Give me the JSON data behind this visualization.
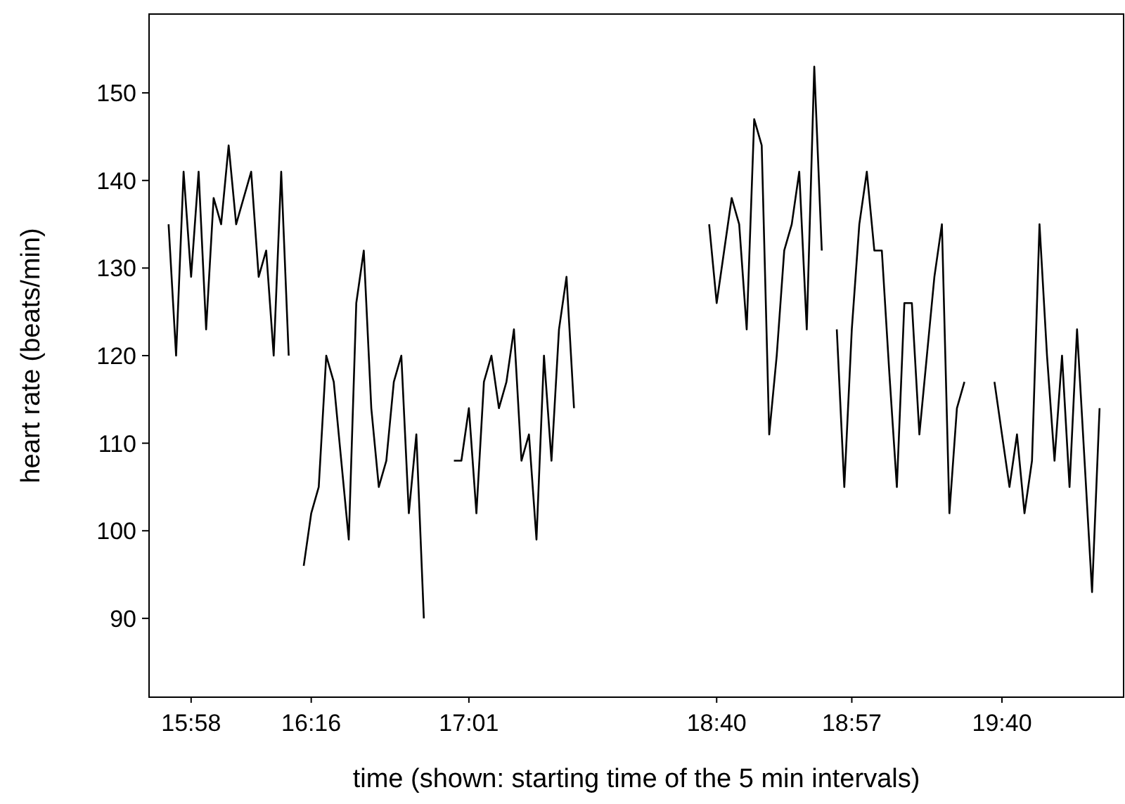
{
  "chart_data": {
    "type": "line",
    "xlabel": "time (shown: starting time of the 5 min intervals)",
    "ylabel": "heart rate (beats/min)",
    "categories": [
      null,
      null,
      null,
      "15:58",
      null,
      null,
      null,
      null,
      null,
      null,
      null,
      null,
      null,
      null,
      null,
      null,
      null,
      null,
      null,
      "16:16",
      null,
      null,
      null,
      null,
      null,
      null,
      null,
      null,
      null,
      null,
      null,
      null,
      null,
      null,
      null,
      null,
      null,
      null,
      null,
      null,
      "17:01",
      null,
      null,
      null,
      null,
      null,
      null,
      null,
      null,
      null,
      null,
      null,
      null,
      null,
      null,
      null,
      null,
      null,
      null,
      null,
      null,
      null,
      null,
      null,
      null,
      null,
      null,
      null,
      null,
      null,
      null,
      null,
      null,
      "18:40",
      null,
      null,
      null,
      null,
      null,
      null,
      null,
      null,
      null,
      null,
      null,
      null,
      null,
      null,
      null,
      null,
      null,
      "18:57",
      null,
      null,
      null,
      null,
      null,
      null,
      null,
      null,
      null,
      null,
      null,
      null,
      null,
      null,
      null,
      null,
      null,
      null,
      null,
      "19:40",
      null,
      null,
      null,
      null,
      null,
      null,
      null,
      null,
      null,
      null,
      null,
      null,
      null
    ],
    "series": [
      {
        "color": "#000000",
        "values": [
          135,
          120,
          141,
          129,
          141,
          123,
          138,
          135,
          144,
          135,
          138,
          141,
          129,
          132,
          120,
          141,
          120,
          null,
          96,
          102,
          105,
          120,
          117,
          108,
          99,
          126,
          132,
          114,
          105,
          108,
          117,
          120,
          102,
          111,
          90,
          null,
          null,
          null,
          108,
          108,
          114,
          102,
          117,
          120,
          114,
          117,
          123,
          108,
          111,
          99,
          120,
          108,
          123,
          129,
          114,
          null,
          null,
          null,
          null,
          null,
          null,
          null,
          null,
          null,
          null,
          null,
          null,
          null,
          null,
          null,
          null,
          null,
          135,
          126,
          132,
          138,
          135,
          123,
          147,
          144,
          111,
          120,
          132,
          135,
          141,
          123,
          153,
          132,
          null,
          123,
          105,
          123,
          135,
          141,
          132,
          132,
          118,
          105,
          126,
          126,
          111,
          120,
          129,
          135,
          102,
          114,
          117,
          null,
          null,
          null,
          117,
          111,
          105,
          111,
          102,
          108,
          135,
          120,
          108,
          120,
          105,
          123,
          108,
          93,
          114
        ]
      }
    ],
    "ylim": [
      81,
      159
    ],
    "yticks": [
      90,
      100,
      110,
      120,
      130,
      140,
      150
    ],
    "grid": false,
    "marker": "none",
    "line_style": "solid"
  }
}
